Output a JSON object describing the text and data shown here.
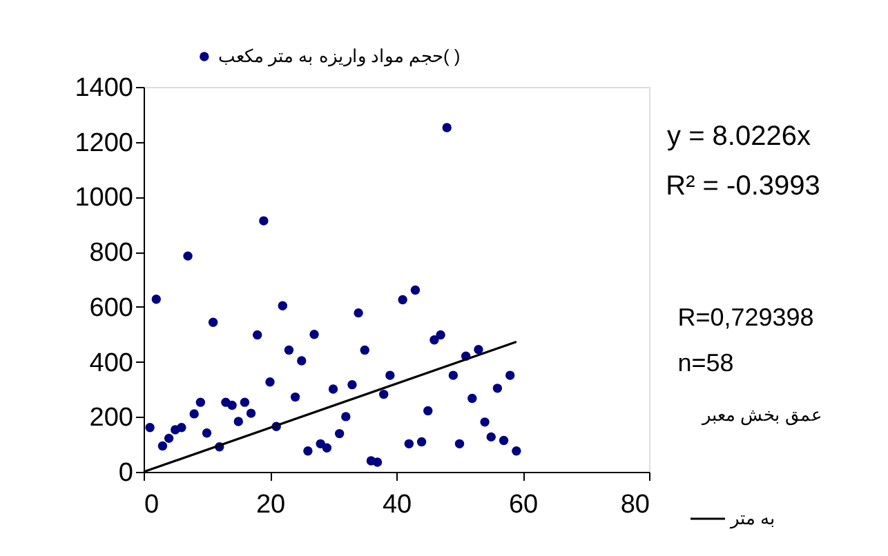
{
  "chart_data": {
    "type": "scatter",
    "xlim": [
      0,
      80
    ],
    "xticks": [
      0,
      20,
      40,
      60,
      80
    ],
    "ylim": [
      0,
      1400
    ],
    "yticks": [
      0,
      200,
      400,
      600,
      800,
      1000,
      1200,
      1400
    ],
    "grid": false,
    "legend": "right",
    "marker": "circle",
    "series": [
      {
        "name": "حجم مواد واریزه به متر مکعب( )",
        "color": "#000080",
        "x": [
          1,
          2,
          3,
          4,
          5,
          6,
          7,
          8,
          9,
          10,
          11,
          12,
          13,
          14,
          15,
          16,
          17,
          18,
          19,
          20,
          21,
          22,
          23,
          24,
          25,
          26,
          27,
          28,
          29,
          30,
          31,
          32,
          33,
          34,
          35,
          36,
          37,
          38,
          39,
          41,
          42,
          43,
          44,
          45,
          46,
          47,
          48,
          49,
          50,
          51,
          52,
          53,
          54,
          55,
          56,
          57,
          58,
          59
        ],
        "values": [
          161,
          628,
          94,
          122,
          153,
          161,
          785,
          211,
          253,
          141,
          544,
          91,
          253,
          242,
          183,
          253,
          213,
          498,
          913,
          327,
          165,
          604,
          443,
          272,
          404,
          76,
          500,
          102,
          87,
          301,
          139,
          201,
          317,
          578,
          443,
          40,
          35,
          282,
          351,
          626,
          102,
          661,
          109,
          222,
          480,
          498,
          1252,
          351,
          102,
          421,
          267,
          445,
          181,
          127,
          304,
          114,
          351,
          76
        ]
      },
      {
        "name": "به متر",
        "type": "line",
        "color": "#000000",
        "line_style": "solid",
        "marker": "none",
        "x": [
          0,
          59
        ],
        "values": [
          0,
          473
        ]
      }
    ],
    "annotations": [
      "y = 8.0226x",
      "R² = -0.3993",
      "R=0,729398",
      "n=58",
      "عمق بخش معبر"
    ]
  }
}
